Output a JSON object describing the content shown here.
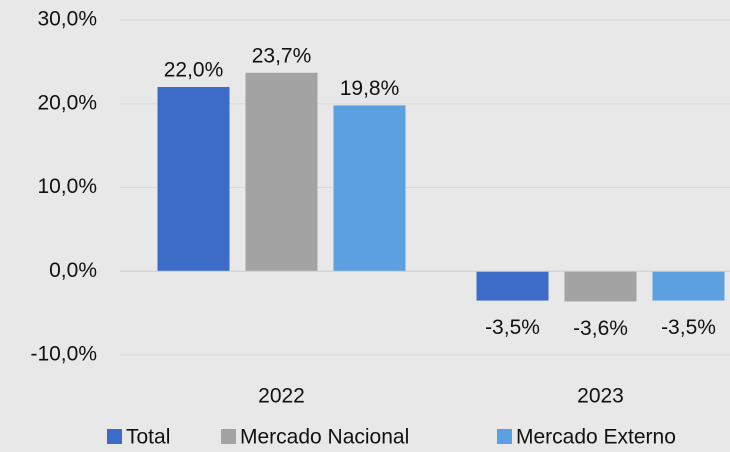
{
  "chart_data": {
    "type": "bar",
    "categories": [
      "2022",
      "2023"
    ],
    "series": [
      {
        "name": "Total",
        "color": "#3c6cc8",
        "values": [
          22.0,
          -3.5
        ],
        "value_labels": [
          "22,0%",
          "-3,5%"
        ]
      },
      {
        "name": "Mercado Nacional",
        "color": "#a3a3a3",
        "values": [
          23.7,
          -3.6
        ],
        "value_labels": [
          "23,7%",
          "-3,6%"
        ]
      },
      {
        "name": "Mercado Externo",
        "color": "#5ca0e2",
        "values": [
          19.8,
          -3.5
        ],
        "value_labels": [
          "19,8%",
          "-3,5%"
        ]
      }
    ],
    "ylim": [
      -10,
      30
    ],
    "yticks": [
      {
        "value": -10,
        "label": "-10,0%"
      },
      {
        "value": 0,
        "label": "0,0%"
      },
      {
        "value": 10,
        "label": "10,0%"
      },
      {
        "value": 20,
        "label": "20,0%"
      },
      {
        "value": 30,
        "label": "30,0%"
      }
    ],
    "grid": true,
    "legend": "bottom"
  }
}
